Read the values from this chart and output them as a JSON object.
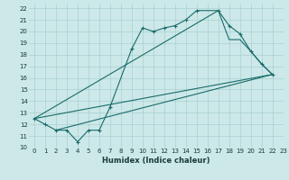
{
  "xlabel": "Humidex (Indice chaleur)",
  "bg_color": "#cce8e8",
  "line_color": "#1a6b6b",
  "grid_color": "#aad0d0",
  "xlim": [
    -0.5,
    23
  ],
  "ylim": [
    10,
    22.4
  ],
  "xticks": [
    0,
    1,
    2,
    3,
    4,
    5,
    6,
    7,
    8,
    9,
    10,
    11,
    12,
    13,
    14,
    15,
    16,
    17,
    18,
    19,
    20,
    21,
    22,
    23
  ],
  "yticks": [
    10,
    11,
    12,
    13,
    14,
    15,
    16,
    17,
    18,
    19,
    20,
    21,
    22
  ],
  "line1_x": [
    0,
    1,
    2,
    3,
    4,
    5,
    6,
    7,
    9,
    10,
    11,
    12,
    13,
    14,
    15,
    17,
    18,
    19,
    20,
    21,
    22
  ],
  "line1_y": [
    12.5,
    12.0,
    11.5,
    11.5,
    10.5,
    11.5,
    11.5,
    13.5,
    18.5,
    20.3,
    20.0,
    20.3,
    20.5,
    21.0,
    21.8,
    21.8,
    20.5,
    19.8,
    18.3,
    17.2,
    16.3
  ],
  "line2_x": [
    0,
    17,
    18,
    19,
    20,
    21,
    22
  ],
  "line2_y": [
    12.5,
    21.8,
    19.3,
    19.3,
    18.3,
    17.2,
    16.3
  ],
  "line3_x": [
    0,
    22
  ],
  "line3_y": [
    12.5,
    16.3
  ],
  "line4_x": [
    2,
    22
  ],
  "line4_y": [
    11.5,
    16.3
  ]
}
